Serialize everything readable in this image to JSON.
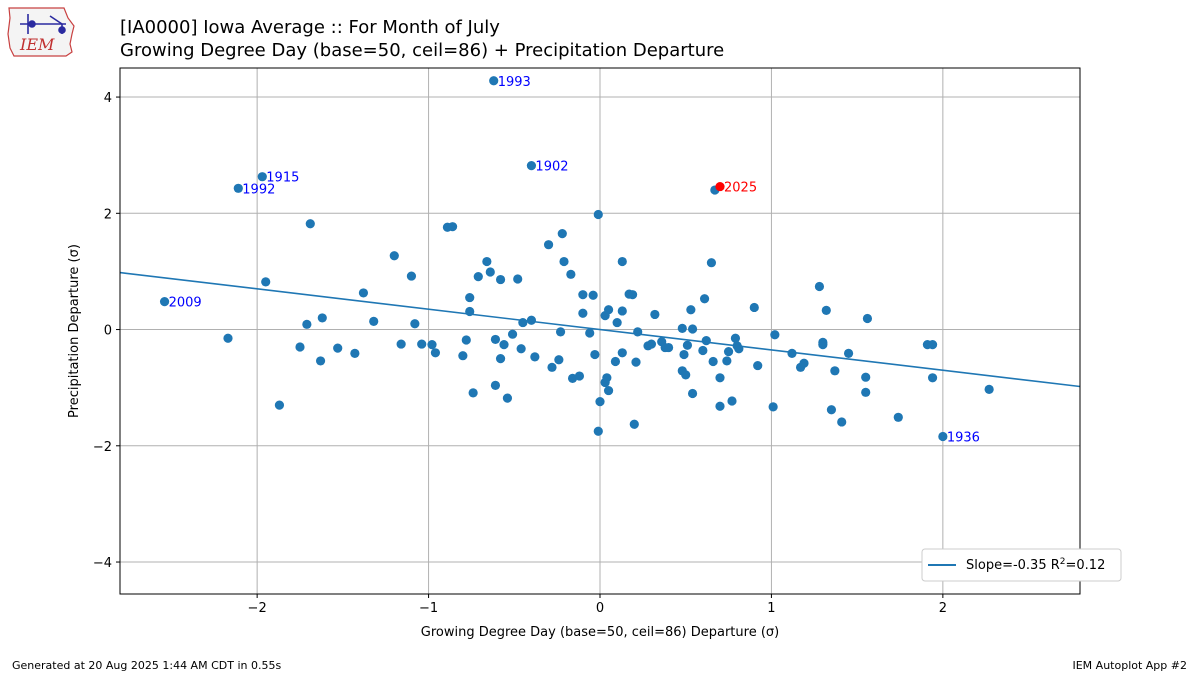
{
  "logo": {
    "text": "IEM"
  },
  "header": {
    "title_line1": "[IA0000] Iowa Average :: For Month of July",
    "title_line2": "Growing Degree Day (base=50, ceil=86) + Precipitation Departure"
  },
  "footer": {
    "generated": "Generated at 20 Aug 2025 1:44 AM CDT in 0.55s",
    "app": "IEM Autoplot App #2"
  },
  "colors": {
    "points": "#1f77b4",
    "highlight": "#ff0000",
    "label": "#0000ff",
    "grid": "#b0b0b0"
  },
  "chart_data": {
    "type": "scatter",
    "xlabel": "Growing Degree Day (base=50, ceil=86) Departure (σ)",
    "ylabel": "Precipitation Departure (σ)",
    "xlim": [
      -2.8,
      2.8
    ],
    "ylim": [
      -4.55,
      4.5
    ],
    "xticks": [
      -2,
      -1,
      0,
      1,
      2
    ],
    "yticks": [
      -4,
      -2,
      0,
      2,
      4
    ],
    "xtick_labels": [
      "−2",
      "−1",
      "0",
      "1",
      "2"
    ],
    "ytick_labels": [
      "−4",
      "−2",
      "0",
      "2",
      "4"
    ],
    "grid": true,
    "legend": {
      "placement": "lower-right",
      "label": "Slope=-0.35 R",
      "sup": "2",
      "label_end": "=0.12"
    },
    "regression": {
      "slope": -0.35,
      "intercept": 0.0,
      "r2": 0.12
    },
    "labeled_points": [
      {
        "year": "1993",
        "x": -0.62,
        "y": 4.28,
        "color": "#1f77b4",
        "label_color": "#0000ff"
      },
      {
        "year": "1902",
        "x": -0.4,
        "y": 2.82,
        "color": "#1f77b4",
        "label_color": "#0000ff"
      },
      {
        "year": "1915",
        "x": -1.97,
        "y": 2.63,
        "color": "#1f77b4",
        "label_color": "#0000ff"
      },
      {
        "year": "1992",
        "x": -2.11,
        "y": 2.43,
        "color": "#1f77b4",
        "label_color": "#0000ff"
      },
      {
        "year": "2025",
        "x": 0.7,
        "y": 2.46,
        "color": "#ff0000",
        "label_color": "#ff0000"
      },
      {
        "year": "2009",
        "x": -2.54,
        "y": 0.48,
        "color": "#1f77b4",
        "label_color": "#0000ff"
      },
      {
        "year": "1936",
        "x": 2.0,
        "y": -1.84,
        "color": "#1f77b4",
        "label_color": "#0000ff"
      }
    ],
    "points": [
      [
        -2.17,
        -0.15
      ],
      [
        -1.95,
        0.82
      ],
      [
        -1.87,
        -1.3
      ],
      [
        -1.75,
        -0.3
      ],
      [
        -1.69,
        1.82
      ],
      [
        -1.71,
        0.09
      ],
      [
        -1.62,
        0.2
      ],
      [
        -1.63,
        -0.54
      ],
      [
        -1.53,
        -0.32
      ],
      [
        -1.43,
        -0.41
      ],
      [
        -1.38,
        0.63
      ],
      [
        -1.32,
        0.14
      ],
      [
        -1.2,
        1.27
      ],
      [
        -1.16,
        -0.25
      ],
      [
        -1.1,
        0.92
      ],
      [
        -1.08,
        0.1
      ],
      [
        -1.04,
        -0.25
      ],
      [
        -0.98,
        -0.26
      ],
      [
        -0.96,
        -0.4
      ],
      [
        -0.89,
        1.76
      ],
      [
        -0.86,
        1.77
      ],
      [
        -0.8,
        -0.45
      ],
      [
        -0.78,
        -0.18
      ],
      [
        -0.76,
        0.55
      ],
      [
        -0.76,
        0.31
      ],
      [
        -0.74,
        -1.09
      ],
      [
        -0.71,
        0.91
      ],
      [
        -0.66,
        1.17
      ],
      [
        -0.64,
        0.99
      ],
      [
        -0.61,
        -0.96
      ],
      [
        -0.61,
        -0.17
      ],
      [
        -0.58,
        0.86
      ],
      [
        -0.58,
        -0.5
      ],
      [
        -0.56,
        -0.26
      ],
      [
        -0.54,
        -1.18
      ],
      [
        -0.51,
        -0.08
      ],
      [
        -0.48,
        0.87
      ],
      [
        -0.46,
        -0.33
      ],
      [
        -0.45,
        0.12
      ],
      [
        -0.4,
        0.16
      ],
      [
        -0.38,
        -0.47
      ],
      [
        -0.3,
        1.46
      ],
      [
        -0.28,
        -0.65
      ],
      [
        -0.24,
        -0.52
      ],
      [
        -0.23,
        -0.04
      ],
      [
        -0.22,
        1.65
      ],
      [
        -0.21,
        1.17
      ],
      [
        -0.17,
        0.95
      ],
      [
        -0.16,
        -0.84
      ],
      [
        -0.12,
        -0.8
      ],
      [
        -0.1,
        0.28
      ],
      [
        -0.1,
        0.6
      ],
      [
        -0.06,
        -0.06
      ],
      [
        -0.04,
        0.59
      ],
      [
        -0.03,
        -0.43
      ],
      [
        -0.01,
        1.98
      ],
      [
        -0.01,
        -1.75
      ],
      [
        0.0,
        -1.24
      ],
      [
        0.03,
        -0.91
      ],
      [
        0.03,
        0.24
      ],
      [
        0.04,
        -0.83
      ],
      [
        0.05,
        -1.05
      ],
      [
        0.05,
        0.34
      ],
      [
        0.09,
        -0.55
      ],
      [
        0.1,
        0.12
      ],
      [
        0.13,
        1.17
      ],
      [
        0.13,
        -0.4
      ],
      [
        0.13,
        0.32
      ],
      [
        0.17,
        0.61
      ],
      [
        0.19,
        0.6
      ],
      [
        0.2,
        -1.63
      ],
      [
        0.21,
        -0.56
      ],
      [
        0.22,
        -0.04
      ],
      [
        0.28,
        -0.28
      ],
      [
        0.3,
        -0.25
      ],
      [
        0.32,
        0.26
      ],
      [
        0.36,
        -0.21
      ],
      [
        0.38,
        -0.31
      ],
      [
        0.4,
        -0.31
      ],
      [
        0.48,
        -0.71
      ],
      [
        0.48,
        0.02
      ],
      [
        0.49,
        -0.43
      ],
      [
        0.5,
        -0.78
      ],
      [
        0.51,
        -0.27
      ],
      [
        0.53,
        0.34
      ],
      [
        0.54,
        0.01
      ],
      [
        0.54,
        -1.1
      ],
      [
        0.6,
        -0.36
      ],
      [
        0.61,
        0.53
      ],
      [
        0.62,
        -0.19
      ],
      [
        0.65,
        1.15
      ],
      [
        0.66,
        -0.55
      ],
      [
        0.67,
        2.4
      ],
      [
        0.7,
        -0.83
      ],
      [
        0.7,
        -1.32
      ],
      [
        0.74,
        -0.54
      ],
      [
        0.75,
        -0.38
      ],
      [
        0.77,
        -1.23
      ],
      [
        0.79,
        -0.15
      ],
      [
        0.8,
        -0.28
      ],
      [
        0.81,
        -0.33
      ],
      [
        0.9,
        0.38
      ],
      [
        0.92,
        -0.62
      ],
      [
        1.01,
        -1.33
      ],
      [
        1.02,
        -0.09
      ],
      [
        1.12,
        -0.41
      ],
      [
        1.17,
        -0.65
      ],
      [
        1.19,
        -0.58
      ],
      [
        1.28,
        0.74
      ],
      [
        1.3,
        -0.22
      ],
      [
        1.3,
        -0.26
      ],
      [
        1.32,
        0.33
      ],
      [
        1.35,
        -1.38
      ],
      [
        1.37,
        -0.71
      ],
      [
        1.41,
        -1.59
      ],
      [
        1.45,
        -0.41
      ],
      [
        1.55,
        -0.82
      ],
      [
        1.55,
        -1.08
      ],
      [
        1.56,
        0.19
      ],
      [
        1.74,
        -1.51
      ],
      [
        1.91,
        -0.26
      ],
      [
        1.94,
        -0.26
      ],
      [
        1.94,
        -0.83
      ],
      [
        2.27,
        -1.03
      ]
    ]
  }
}
